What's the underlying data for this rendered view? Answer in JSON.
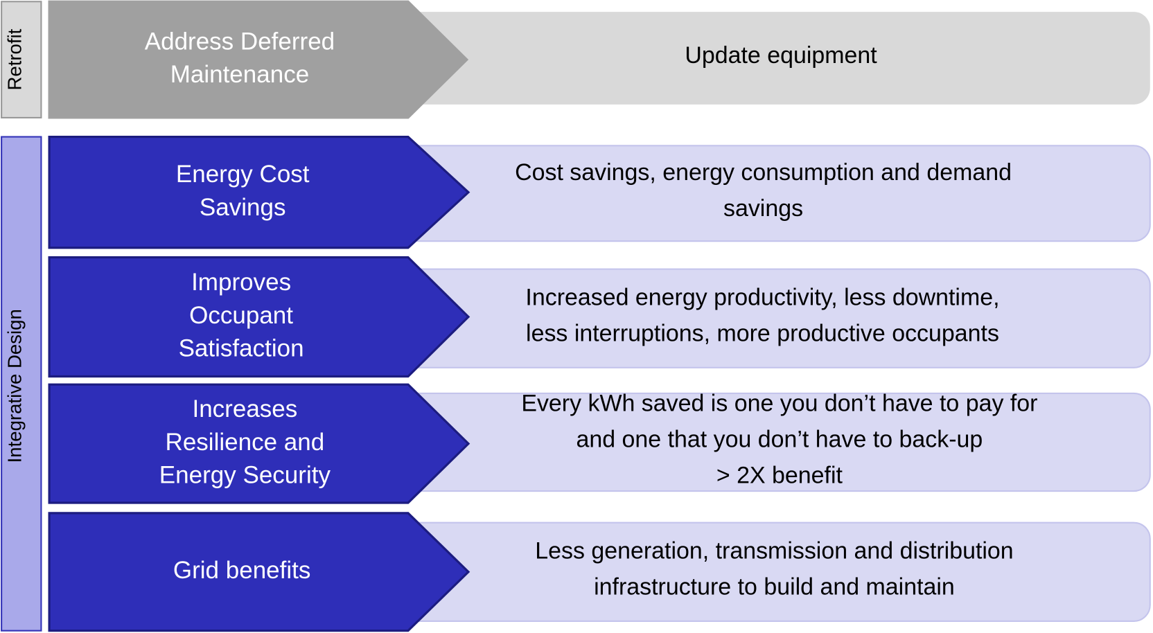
{
  "groups": [
    {
      "label": "Retrofit"
    },
    {
      "label": "Integrative Design"
    }
  ],
  "rows": [
    {
      "title": [
        "Address Deferred",
        "Maintenance"
      ],
      "description": [
        "Update equipment"
      ]
    },
    {
      "title": [
        "Energy Cost",
        "Savings"
      ],
      "description": [
        "Cost savings, energy consumption and demand",
        "savings"
      ]
    },
    {
      "title": [
        "Improves",
        "Occupant",
        "Satisfaction"
      ],
      "description": [
        "Increased energy productivity, less downtime,",
        "less interruptions, more productive occupants"
      ]
    },
    {
      "title": [
        "Increases",
        "Resilience and",
        "Energy Security"
      ],
      "description": [
        "Every kWh saved is one you don’t have to pay for",
        "and one that you don’t have to back-up",
        "> 2X benefit"
      ]
    },
    {
      "title": [
        "Grid benefits"
      ],
      "description": [
        "Less generation, transmission and distribution",
        "infrastructure to build and maintain"
      ]
    }
  ]
}
